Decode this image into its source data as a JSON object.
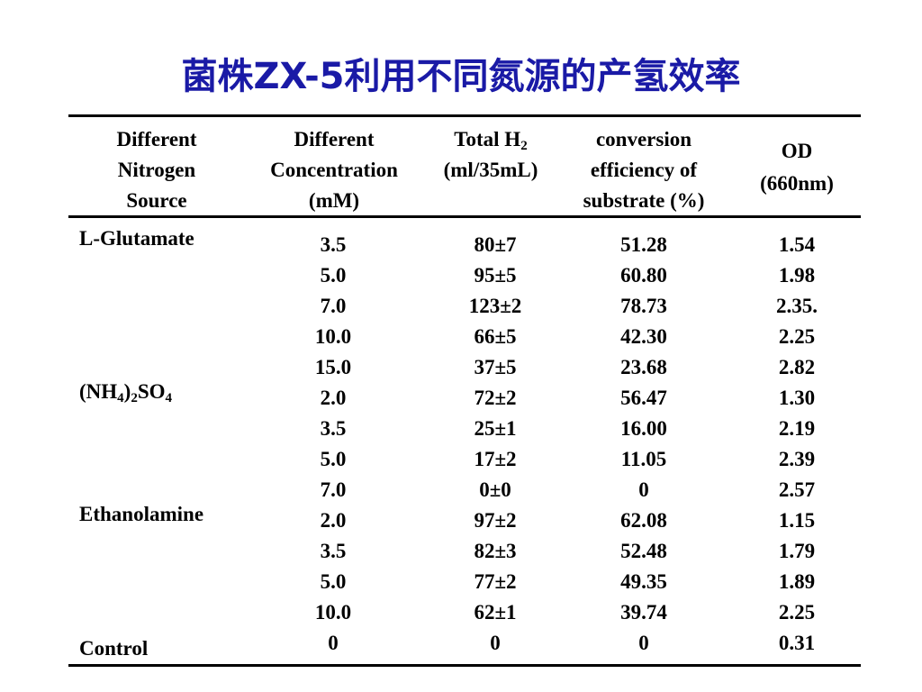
{
  "title": "菌株ZX-5利用不同氮源的产氢效率",
  "headers": {
    "source": [
      "Different",
      "Nitrogen",
      "Source"
    ],
    "concentration": [
      "Different",
      "Concentration",
      "(mM)"
    ],
    "total_h2": {
      "line1": "Total H",
      "sub": "2",
      "line2": "(ml/35mL)"
    },
    "efficiency": [
      "conversion",
      "efficiency of",
      "substrate (%)"
    ],
    "od": [
      "OD",
      "(660nm)"
    ]
  },
  "rows": [
    {
      "source": "L-Glutamate",
      "conc": "3.5",
      "total": "80±7",
      "eff": "51.28",
      "od": "1.54"
    },
    {
      "source": "",
      "conc": "5.0",
      "total": "95±5",
      "eff": "60.80",
      "od": "1.98"
    },
    {
      "source": "",
      "conc": "7.0",
      "total": "123±2",
      "eff": "78.73",
      "od": "2.35."
    },
    {
      "source": "",
      "conc": "10.0",
      "total": "66±5",
      "eff": "42.30",
      "od": "2.25"
    },
    {
      "source": "",
      "conc": "15.0",
      "total": "37±5",
      "eff": "23.68",
      "od": "2.82"
    },
    {
      "source": "(NH4)2SO4",
      "conc": "2.0",
      "total": "72±2",
      "eff": "56.47",
      "od": "1.30"
    },
    {
      "source": "",
      "conc": "3.5",
      "total": "25±1",
      "eff": "16.00",
      "od": "2.19"
    },
    {
      "source": "",
      "conc": "5.0",
      "total": "17±2",
      "eff": "11.05",
      "od": "2.39"
    },
    {
      "source": "",
      "conc": "7.0",
      "total": "0±0",
      "eff": "0",
      "od": "2.57"
    },
    {
      "source": "Ethanolamine",
      "conc": "2.0",
      "total": "97±2",
      "eff": "62.08",
      "od": "1.15"
    },
    {
      "source": "",
      "conc": "3.5",
      "total": "82±3",
      "eff": "52.48",
      "od": "1.79"
    },
    {
      "source": "",
      "conc": "5.0",
      "total": "77±2",
      "eff": "49.35",
      "od": "1.89"
    },
    {
      "source": "",
      "conc": "10.0",
      "total": "62±1",
      "eff": "39.74",
      "od": "2.25"
    },
    {
      "source": "Control",
      "conc": "0",
      "total": "0",
      "eff": "0",
      "od": "0.31"
    }
  ],
  "colors": {
    "title": "#1a1aa6",
    "text": "#000000",
    "background": "#ffffff"
  }
}
